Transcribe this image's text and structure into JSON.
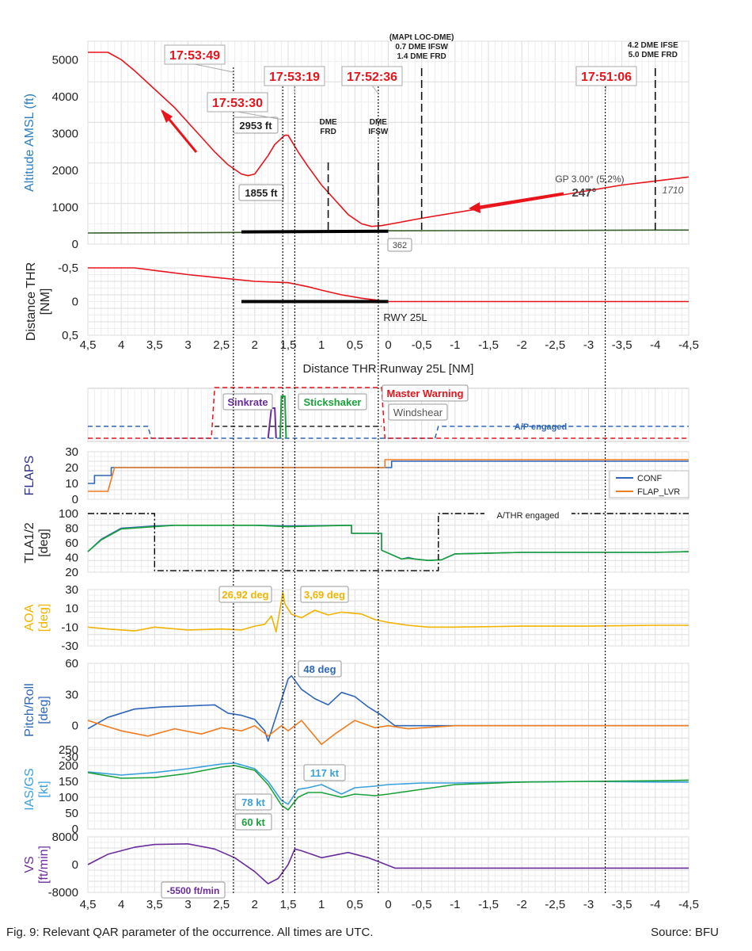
{
  "caption": "Fig. 9: Relevant QAR parameter of the occurrence. All times are UTC.",
  "source": "Source: BFU",
  "colors": {
    "red": "#e8141b",
    "blue": "#2e66b8",
    "lightblue": "#3aa0dc",
    "green": "#1aa23a",
    "orange": "#ef7d22",
    "yellow": "#f0b400",
    "purple": "#6a2c9b",
    "darkgreen": "#355e2a",
    "ylabel_altitude": "#2e7fc0",
    "grid": "#dcdcdc",
    "grid_minor": "#eeeeee"
  },
  "chart_data": {
    "type": "line",
    "x_axis": {
      "label": "Distance THR Runway 25L [NM]",
      "range": [
        4.5,
        -4.5
      ],
      "ticks": [
        "4,5",
        "4",
        "3,5",
        "3",
        "2,5",
        "2",
        "1,5",
        "1",
        "0,5",
        "0",
        "-0,5",
        "-1",
        "-1,5",
        "-2",
        "-2,5",
        "-3",
        "-3,5",
        "-4",
        "-4,5"
      ]
    },
    "time_markers": [
      {
        "label": "17:53:49",
        "x": 2.32
      },
      {
        "label": "17:53:30",
        "x": 1.58
      },
      {
        "label": "17:53:19",
        "x": 1.4
      },
      {
        "label": "17:52:36",
        "x": 0.15
      },
      {
        "label": "17:51:06",
        "x": -3.25
      }
    ],
    "reference_lines": [
      {
        "x": 0.9,
        "labels": [
          "DME",
          "FRD"
        ]
      },
      {
        "x": 0.15,
        "labels": [
          "DME",
          "IFSW"
        ]
      },
      {
        "x": -0.5,
        "labels": [
          "(MAPt LOC-DME)",
          "0.7 DME IFSW",
          "1.4 DME FRD"
        ]
      },
      {
        "x": -4.0,
        "labels": [
          "4.2 DME IFSE",
          "5.0 DME FRD"
        ]
      }
    ],
    "panels": [
      {
        "id": "altitude",
        "ylabel": "Altitude AMSL (ft)",
        "ylim": [
          0,
          5500
        ],
        "yticks": [
          "0",
          "1000",
          "2000",
          "3000",
          "4000",
          "5000"
        ],
        "series": [
          {
            "color": "red",
            "x": [
              4.5,
              4.2,
              4.0,
              3.8,
              3.5,
              3.2,
              3.0,
              2.8,
              2.6,
              2.4,
              2.2,
              2.1,
              2.0,
              1.9,
              1.8,
              1.7,
              1.55,
              1.5,
              1.45,
              1.35,
              1.2,
              1.0,
              0.8,
              0.6,
              0.4,
              0.25,
              0.1,
              -0.2,
              -0.5,
              -1.0,
              -1.5,
              -2.0,
              -2.5,
              -3.0,
              -3.5,
              -4.0,
              -4.5
            ],
            "y": [
              5200,
              5200,
              5000,
              4700,
              4200,
              3700,
              3300,
              2900,
              2500,
              2150,
              1900,
              1855,
              1900,
              2150,
              2400,
              2700,
              2953,
              2950,
              2800,
              2500,
              2100,
              1600,
              1200,
              800,
              550,
              480,
              500,
              600,
              700,
              850,
              1000,
              1150,
              1300,
              1450,
              1600,
              1710,
              1820
            ]
          },
          {
            "color": "darkgreen",
            "x": [
              4.5,
              3.0,
              1.5,
              0.0,
              -1.0,
              -2.5,
              -4.0,
              -4.5
            ],
            "y": [
              300,
              310,
              320,
              362,
              365,
              370,
              380,
              380
            ]
          },
          {
            "color": "black",
            "x": [
              2.2,
              0.0
            ],
            "y": [
              330,
              350
            ],
            "width": 4
          }
        ],
        "annotations": [
          {
            "text": "2953 ft",
            "x": 1.5,
            "y": 2953
          },
          {
            "text": "1855 ft",
            "x": 2.1,
            "y": 1855
          },
          {
            "text": "362",
            "x": 0.0,
            "y": 362
          },
          {
            "text": "GP 3.00° (5,2%)",
            "x": -2.6,
            "y": 1700
          },
          {
            "text": "247°",
            "x": -2.6,
            "y": 1300
          },
          {
            "text": "1710",
            "x": -4.3,
            "y": 1400
          }
        ]
      },
      {
        "id": "distance",
        "ylabel": [
          "Distance THR",
          "[NM]"
        ],
        "ylim": [
          0.5,
          -0.5
        ],
        "yticks": [
          "-0,5",
          "0",
          "0,5"
        ],
        "series": [
          {
            "color": "red",
            "x": [
              4.5,
              3.8,
              3.4,
              3.0,
              2.5,
              2.0,
              1.5,
              1.2,
              1.0,
              0.7,
              0.4,
              0.0,
              -0.5,
              -1,
              -2,
              -3,
              -4,
              -4.5
            ],
            "y": [
              -0.5,
              -0.5,
              -0.45,
              -0.4,
              -0.35,
              -0.3,
              -0.28,
              -0.22,
              -0.17,
              -0.1,
              -0.05,
              0.0,
              0.0,
              0.0,
              0.0,
              0.0,
              0.0,
              0.0
            ]
          },
          {
            "color": "black",
            "x": [
              2.2,
              0.0
            ],
            "y": [
              0,
              0
            ],
            "width": 4
          }
        ],
        "annotations": [
          {
            "text": "RWY 25L",
            "x": -0.15,
            "y": 0.22
          }
        ]
      },
      {
        "id": "warnings",
        "ylabel": "",
        "legend": [
          "Sinkrate",
          "Stickshaker",
          "Master Warning",
          "Windshear",
          "A/P engaged"
        ],
        "annotations": [
          {
            "text": "Sinkrate",
            "x": 2.0
          },
          {
            "text": "Stickshaker",
            "x": 1.0
          },
          {
            "text": "Master Warning",
            "x": -0.2
          },
          {
            "text": "Windshear",
            "x": -0.45
          },
          {
            "text": "A/P engaged",
            "x": -2.3
          }
        ]
      },
      {
        "id": "flaps",
        "ylabel": "FLAPS",
        "ylim": [
          0,
          30
        ],
        "yticks": [
          "0",
          "10",
          "20",
          "30"
        ],
        "legend": [
          "CONF",
          "FLAP_LVR"
        ],
        "series": [
          {
            "name": "CONF",
            "color": "blue",
            "x": [
              4.5,
              4.4,
              4.4,
              4.3,
              4.3,
              4.15,
              4.15,
              4.1,
              -0.05,
              -0.05,
              -0.1,
              -0.1,
              -4.5
            ],
            "y": [
              10,
              10,
              15,
              15,
              15,
              15,
              20,
              20,
              20,
              24,
              24,
              24,
              24
            ]
          },
          {
            "name": "FLAP_LVR",
            "color": "orange",
            "x": [
              4.5,
              4.2,
              4.1,
              0.05,
              0.05,
              -4.5
            ],
            "y": [
              5,
              5,
              20,
              20,
              25,
              25
            ]
          }
        ]
      },
      {
        "id": "tla",
        "ylabel": [
          "TLA1/2",
          "[deg]"
        ],
        "ylim": [
          20,
          100
        ],
        "yticks": [
          "20",
          "40",
          "60",
          "80",
          "100"
        ],
        "series": [
          {
            "color": "blue",
            "x": [
              4.5,
              4.3,
              4.0,
              3.5,
              3.2,
              2.0,
              1.5,
              0.55,
              0.55,
              0.1,
              0.1,
              -0.2,
              -0.3,
              -0.4,
              -0.6,
              -0.8,
              -1.0,
              -2.0,
              -3.0,
              -4.0,
              -4.5
            ],
            "y": [
              48,
              65,
              80,
              83,
              84,
              84,
              83,
              84,
              73,
              73,
              50,
              38,
              40,
              38,
              36,
              37,
              45,
              47,
              47,
              47,
              48
            ]
          },
          {
            "color": "green",
            "x": [
              4.5,
              4.3,
              4.0,
              3.5,
              3.2,
              2.0,
              1.5,
              0.55,
              0.55,
              0.1,
              0.1,
              -0.2,
              -0.3,
              -0.4,
              -0.6,
              -0.8,
              -1.0,
              -2.0,
              -3.0,
              -4.0,
              -4.5
            ],
            "y": [
              48,
              64,
              79,
              82,
              84,
              84,
              82,
              84,
              73,
              73,
              50,
              38,
              39,
              38,
              36,
              37,
              45,
              47,
              47,
              47,
              48
            ]
          },
          {
            "color": "black",
            "dash": "dashdot",
            "x": [
              4.5,
              3.5,
              3.5,
              -0.75,
              -0.75,
              -4.5
            ],
            "y": [
              100,
              100,
              22,
              22,
              100,
              100
            ]
          }
        ],
        "annotations": [
          {
            "text": "A/THR engaged",
            "x": -1.9,
            "y": 100
          }
        ]
      },
      {
        "id": "aoa",
        "ylabel": [
          "AOA",
          "[deg]"
        ],
        "ylim": [
          -30,
          30
        ],
        "yticks": [
          "-30",
          "-10",
          "10",
          "30"
        ],
        "series": [
          {
            "color": "yellow",
            "x": [
              4.5,
              4.2,
              3.8,
              3.5,
              3.0,
              2.5,
              2.2,
              2.0,
              1.85,
              1.75,
              1.68,
              1.62,
              1.58,
              1.55,
              1.45,
              1.3,
              1.1,
              0.9,
              0.7,
              0.4,
              0.2,
              0.0,
              -0.3,
              -0.6,
              -1.0,
              -2.0,
              -3.0,
              -4.0,
              -4.5
            ],
            "y": [
              -10,
              -12,
              -14,
              -10,
              -13,
              -12,
              -13,
              -9,
              -7,
              2,
              -15,
              10,
              26.92,
              15,
              3.69,
              0,
              8,
              3,
              6,
              4,
              -2,
              -5,
              -8,
              -10,
              -10,
              -9,
              -9,
              -8,
              -8
            ]
          }
        ],
        "annotations": [
          {
            "text": "26,92 deg",
            "x": 1.95,
            "y": 25
          },
          {
            "text": "3,69 deg",
            "x": 0.9,
            "y": 25
          }
        ]
      },
      {
        "id": "pitchroll",
        "ylabel": [
          "Pitch/Roll",
          "[deg]"
        ],
        "ylim": [
          -30,
          60
        ],
        "yticks": [
          "-30",
          "0",
          "30",
          "60"
        ],
        "series": [
          {
            "name": "Pitch",
            "color": "blue",
            "x": [
              4.5,
              4.2,
              3.8,
              3.4,
              3.0,
              2.6,
              2.4,
              2.2,
              2.0,
              1.85,
              1.8,
              1.7,
              1.6,
              1.5,
              1.45,
              1.3,
              1.1,
              0.9,
              0.7,
              0.5,
              0.3,
              0.1,
              -0.1,
              -0.5,
              -1.0,
              -2.0,
              -3.0,
              -4.0,
              -4.5
            ],
            "y": [
              -3,
              8,
              16,
              18,
              19,
              20,
              12,
              10,
              6,
              -5,
              -15,
              5,
              25,
              45,
              48,
              35,
              26,
              20,
              32,
              28,
              18,
              10,
              0,
              0,
              0,
              0,
              0,
              0,
              0
            ]
          },
          {
            "name": "Roll",
            "color": "orange",
            "x": [
              4.5,
              4.0,
              3.6,
              3.2,
              2.8,
              2.5,
              2.2,
              2.0,
              1.8,
              1.6,
              1.5,
              1.3,
              1.0,
              0.8,
              0.5,
              0.2,
              0.0,
              -0.3,
              -1.0,
              -2.0,
              -3.0,
              -4.0,
              -4.5
            ],
            "y": [
              5,
              -5,
              -10,
              -3,
              -8,
              -2,
              -5,
              0,
              -10,
              0,
              -5,
              5,
              -18,
              -8,
              5,
              -2,
              0,
              -3,
              0,
              0,
              0,
              0,
              0
            ]
          }
        ],
        "annotations": [
          {
            "text": "48 deg",
            "x": 1.0,
            "y": 48
          }
        ]
      },
      {
        "id": "speed",
        "ylabel": [
          "IAS/GS",
          "[kt]"
        ],
        "ylim": [
          0,
          250
        ],
        "yticks": [
          "0",
          "50",
          "100",
          "150",
          "200",
          "250"
        ],
        "series": [
          {
            "name": "IAS",
            "color": "lightblue",
            "x": [
              4.5,
              4.0,
              3.5,
              3.0,
              2.5,
              2.3,
              2.0,
              1.8,
              1.6,
              1.5,
              1.35,
              1.2,
              1.0,
              0.7,
              0.5,
              0.2,
              0.0,
              -0.5,
              -1.0,
              -2.0,
              -3.0,
              -4.0,
              -4.5
            ],
            "y": [
              180,
              170,
              178,
              190,
              205,
              208,
              190,
              150,
              90,
              78,
              125,
              130,
              140,
              110,
              130,
              135,
              140,
              145,
              145,
              148,
              150,
              148,
              148
            ]
          },
          {
            "name": "GS",
            "color": "green",
            "x": [
              4.5,
              4.0,
              3.5,
              3.0,
              2.5,
              2.3,
              2.0,
              1.8,
              1.6,
              1.5,
              1.35,
              1.2,
              1.0,
              0.7,
              0.5,
              0.2,
              0.0,
              -0.5,
              -1.0,
              -2.0,
              -3.0,
              -4.0,
              -4.5
            ],
            "y": [
              178,
              160,
              162,
              175,
              195,
              200,
              185,
              140,
              75,
              60,
              100,
              115,
              115,
              100,
              110,
              105,
              110,
              125,
              140,
              148,
              150,
              152,
              154
            ]
          }
        ],
        "annotations": [
          {
            "text": "117 kt",
            "x": 0.95,
            "y": 117
          },
          {
            "text": "78 kt",
            "x": 1.85,
            "y": 78
          },
          {
            "text": "60 kt",
            "x": 1.85,
            "y": 60
          }
        ]
      },
      {
        "id": "vs",
        "ylabel": [
          "VS",
          "[ft/min]"
        ],
        "ylim": [
          -8000,
          8000
        ],
        "yticks": [
          "-8000",
          "0",
          "8000"
        ],
        "series": [
          {
            "color": "purple",
            "x": [
              4.5,
              4.2,
              3.8,
              3.5,
              3.0,
              2.6,
              2.3,
              2.0,
              1.8,
              1.65,
              1.5,
              1.4,
              1.3,
              1.0,
              0.6,
              0.3,
              0.1,
              -0.1,
              -0.5,
              -1.0,
              -2.0,
              -3.0,
              -4.0,
              -4.5
            ],
            "y": [
              0,
              3000,
              5000,
              5800,
              6000,
              4500,
              2000,
              -2000,
              -5500,
              -4000,
              0,
              4500,
              4000,
              2000,
              3500,
              2000,
              500,
              -1000,
              -1000,
              -1000,
              -1000,
              -1000,
              -1000,
              -1000
            ]
          }
        ],
        "annotations": [
          {
            "text": "-5500 ft/min",
            "x": 2.45,
            "y": -7500
          }
        ]
      }
    ]
  }
}
